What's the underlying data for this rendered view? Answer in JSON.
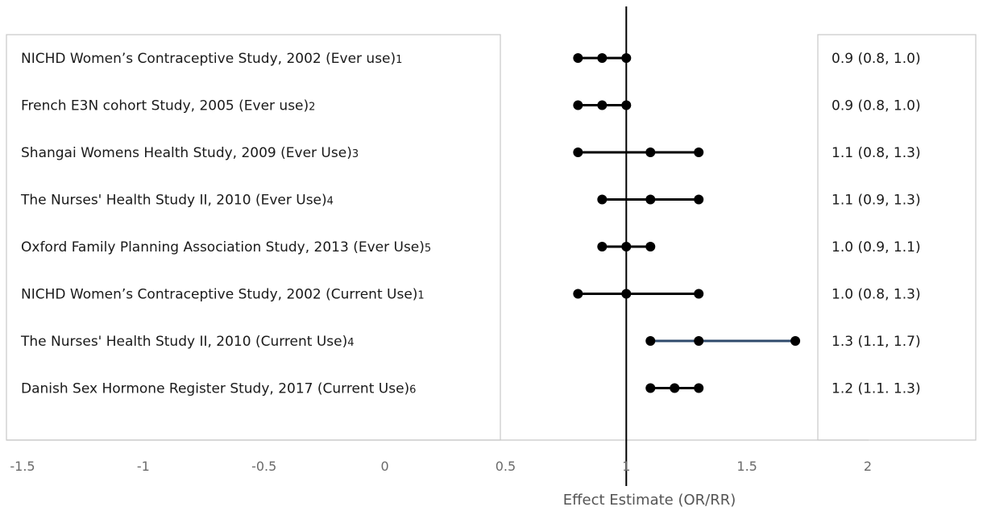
{
  "chart_data": {
    "type": "forest",
    "xlabel": "Effect Estimate (OR/RR)",
    "xlim": [
      -1.5,
      2
    ],
    "x_ticks": [
      "-1.5",
      "-1",
      "-0.5",
      "0",
      "0.5",
      "1",
      "1.5",
      "2"
    ],
    "x_tick_values": [
      -1.5,
      -1,
      -0.5,
      0,
      0.5,
      1,
      1.5,
      2
    ],
    "reference_line": 1,
    "studies": [
      {
        "label": "NICHD Women’s Contraceptive Study, 2002 (Ever use)",
        "sup": "1",
        "estimate": 0.9,
        "lower": 0.8,
        "upper": 1.0,
        "ci_text": "0.9 (0.8, 1.0)",
        "line_color": "#000000"
      },
      {
        "label": "French E3N cohort Study, 2005  (Ever use)",
        "sup": "2",
        "estimate": 0.9,
        "lower": 0.8,
        "upper": 1.0,
        "ci_text": "0.9 (0.8, 1.0)",
        "line_color": "#000000"
      },
      {
        "label": "Shangai Womens Health Study, 2009 (Ever Use)",
        "sup": "3",
        "estimate": 1.1,
        "lower": 0.8,
        "upper": 1.3,
        "ci_text": "1.1 (0.8, 1.3)",
        "line_color": "#000000"
      },
      {
        "label": "The Nurses' Health Study II, 2010 (Ever Use)",
        "sup": "4",
        "estimate": 1.1,
        "lower": 0.9,
        "upper": 1.3,
        "ci_text": "1.1 (0.9, 1.3)",
        "line_color": "#000000"
      },
      {
        "label": "Oxford Family Planning Association Study, 2013 (Ever Use)",
        "sup": "5",
        "estimate": 1.0,
        "lower": 0.9,
        "upper": 1.1,
        "ci_text": "1.0 (0.9, 1.1)",
        "line_color": "#000000"
      },
      {
        "label": "NICHD Women’s Contraceptive Study, 2002  (Current Use)",
        "sup": "1",
        "estimate": 1.0,
        "lower": 0.8,
        "upper": 1.3,
        "ci_text": "1.0 (0.8, 1.3)",
        "line_color": "#000000"
      },
      {
        "label": "The Nurses' Health Study II, 2010  (Current Use)",
        "sup": "4",
        "estimate": 1.3,
        "lower": 1.1,
        "upper": 1.7,
        "ci_text": "1.3 (1.1, 1.7)",
        "line_color": "#2e4a6b"
      },
      {
        "label": "Danish Sex Hormone Register Study, 2017 (Current Use)",
        "sup": "6",
        "estimate": 1.2,
        "lower": 1.1,
        "upper": 1.3,
        "ci_text": "1.2 (1.1. 1.3)",
        "line_color": "#000000"
      }
    ]
  }
}
